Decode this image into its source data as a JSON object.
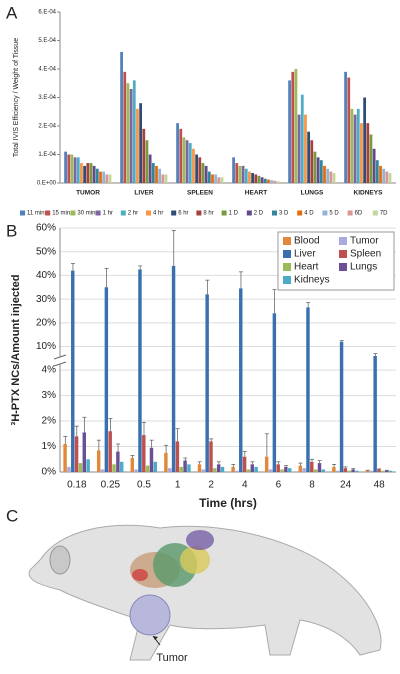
{
  "panel_labels": [
    "A",
    "B",
    "C"
  ],
  "chart_data": [
    {
      "type": "bar",
      "y_label": "Total IVIS Efficiency / Weight of Tissue",
      "categories": [
        "TUMOR",
        "LIVER",
        "SPLEEN",
        "HEART",
        "LUNGS",
        "KIDNEYS"
      ],
      "ylim": [
        0,
        0.0006
      ],
      "yticks": [
        {
          "value": 0,
          "label": "0.E+00"
        },
        {
          "value": 0.0001,
          "label": "1.E-04"
        },
        {
          "value": 0.0002,
          "label": "2.E-04"
        },
        {
          "value": 0.0003,
          "label": "3.E-04"
        },
        {
          "value": 0.0004,
          "label": "4.E-04"
        },
        {
          "value": 0.0005,
          "label": "5.E-04"
        },
        {
          "value": 0.0006,
          "label": "6.E-04"
        }
      ],
      "legend": "bottom",
      "series": [
        {
          "name": "11 mins",
          "color": "#4f81bd",
          "values": [
            0.00011,
            0.00046,
            0.00021,
            9e-05,
            0.00036,
            0.00039
          ]
        },
        {
          "name": "15 mins",
          "color": "#c0504d",
          "values": [
            0.0001,
            0.00039,
            0.00019,
            7e-05,
            0.00039,
            0.00037
          ]
        },
        {
          "name": "30 mins",
          "color": "#9bbb59",
          "values": [
            0.0001,
            0.00035,
            0.00016,
            6e-05,
            0.0004,
            0.00026
          ]
        },
        {
          "name": "1 hr",
          "color": "#8064a2",
          "values": [
            9e-05,
            0.00033,
            0.00015,
            6e-05,
            0.00024,
            0.00024
          ]
        },
        {
          "name": "2 hr",
          "color": "#4bacc6",
          "values": [
            9e-05,
            0.00036,
            0.00014,
            5e-05,
            0.00031,
            0.00026
          ]
        },
        {
          "name": "4 hr",
          "color": "#f79646",
          "values": [
            7e-05,
            0.00026,
            0.00012,
            4e-05,
            0.00024,
            0.00021
          ]
        },
        {
          "name": "6 hr",
          "color": "#2c4d75",
          "values": [
            6e-05,
            0.00028,
            0.0001,
            3.5e-05,
            0.00018,
            0.0003
          ]
        },
        {
          "name": "8 hr",
          "color": "#a5403d",
          "values": [
            7e-05,
            0.00019,
            9e-05,
            3e-05,
            0.00015,
            0.00021
          ]
        },
        {
          "name": "1 D",
          "color": "#7b9a3f",
          "values": [
            7e-05,
            0.00015,
            7e-05,
            2.5e-05,
            0.00011,
            0.00017
          ]
        },
        {
          "name": "2 D",
          "color": "#5f4b8b",
          "values": [
            6e-05,
            0.0001,
            6e-05,
            2e-05,
            9e-05,
            0.00012
          ]
        },
        {
          "name": "3 D",
          "color": "#31859c",
          "values": [
            5e-05,
            7e-05,
            4e-05,
            1.5e-05,
            8e-05,
            8e-05
          ]
        },
        {
          "name": "4 D",
          "color": "#e46c0a",
          "values": [
            4e-05,
            6e-05,
            3e-05,
            1.2e-05,
            6e-05,
            6e-05
          ]
        },
        {
          "name": "5 D",
          "color": "#95b3d7",
          "values": [
            4e-05,
            5e-05,
            3e-05,
            1e-05,
            5e-05,
            5e-05
          ]
        },
        {
          "name": "6D",
          "color": "#d99694",
          "values": [
            3e-05,
            3e-05,
            2e-05,
            8e-06,
            4e-05,
            4e-05
          ]
        },
        {
          "name": "7D",
          "color": "#c3d69b",
          "values": [
            3e-05,
            3e-05,
            2e-05,
            6e-06,
            3.5e-05,
            3.5e-05
          ]
        }
      ]
    },
    {
      "type": "bar",
      "y_label": "³H-PTX NCs/Amount injected",
      "x_label": "Time (hrs)",
      "categories": [
        "0.18",
        "0.25",
        "0.5",
        "1",
        "2",
        "4",
        "6",
        "8",
        "24",
        "48"
      ],
      "ylim": [
        0,
        60
      ],
      "axis_break": [
        4.2,
        6
      ],
      "yticks": [
        {
          "value": 0,
          "label": "0%"
        },
        {
          "value": 1,
          "label": "1%"
        },
        {
          "value": 2,
          "label": "2%"
        },
        {
          "value": 3,
          "label": "3%"
        },
        {
          "value": 4,
          "label": "4%"
        },
        {
          "value": 10,
          "label": "10%"
        },
        {
          "value": 20,
          "label": "20%"
        },
        {
          "value": 30,
          "label": "30%"
        },
        {
          "value": 40,
          "label": "40%"
        },
        {
          "value": 50,
          "label": "50%"
        },
        {
          "value": 60,
          "label": "60%"
        }
      ],
      "grid": true,
      "legend": "upper right",
      "series": [
        {
          "name": "Blood",
          "color": "#e0893a",
          "values": [
            1.1,
            0.85,
            0.55,
            0.75,
            0.3,
            0.2,
            0.6,
            0.25,
            0.2,
            0.05
          ],
          "errors": [
            0.3,
            0.4,
            0.1,
            0.3,
            0.1,
            0.1,
            0.9,
            0.1,
            0.1,
            0.02
          ]
        },
        {
          "name": "Tumor",
          "color": "#a9a9e0",
          "values": [
            0.2,
            0.1,
            0.1,
            0.15,
            0.1,
            0.05,
            0.1,
            0.15,
            0.05,
            0.05
          ]
        },
        {
          "name": "Liver",
          "color": "#3a6fb0",
          "values": [
            42,
            35,
            42.5,
            44,
            32,
            34.5,
            24,
            26.5,
            12,
            6
          ],
          "errors": [
            3,
            8,
            1.5,
            15,
            6,
            7,
            10,
            2,
            0.5,
            1
          ]
        },
        {
          "name": "Spleen",
          "color": "#c0504d",
          "values": [
            1.4,
            1.6,
            1.45,
            1.2,
            1.2,
            0.6,
            0.3,
            0.4,
            0.15,
            0.1
          ],
          "errors": [
            0.4,
            0.5,
            0.5,
            0.5,
            0.1,
            0.2,
            0.1,
            0.1,
            0.05,
            0.02
          ]
        },
        {
          "name": "Heart",
          "color": "#9bbb59",
          "values": [
            0.35,
            0.3,
            0.25,
            0.2,
            0.15,
            0.1,
            0.1,
            0.1,
            0.05,
            0.05
          ]
        },
        {
          "name": "Lungs",
          "color": "#6b4f96",
          "values": [
            1.55,
            0.8,
            0.95,
            0.45,
            0.3,
            0.3,
            0.2,
            0.35,
            0.1,
            0.05
          ],
          "errors": [
            0.6,
            0.3,
            0.3,
            0.1,
            0.1,
            0.1,
            0.05,
            0.1,
            0.03,
            0.02
          ]
        },
        {
          "name": "Kidneys",
          "color": "#4bacc6",
          "values": [
            0.5,
            0.4,
            0.4,
            0.3,
            0.2,
            0.2,
            0.15,
            0.1,
            0.05,
            0.05
          ]
        }
      ]
    }
  ],
  "illustration": {
    "label": "Tumor"
  }
}
